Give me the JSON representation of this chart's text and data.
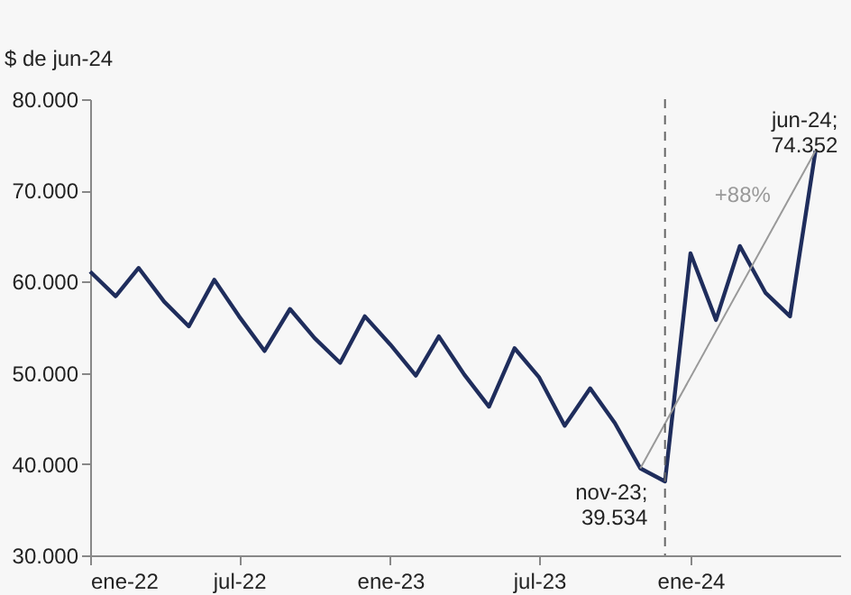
{
  "chart_data": {
    "type": "line",
    "ylabel": "$ de jun-24",
    "x": [
      "2022-01",
      "2022-02",
      "2022-03",
      "2022-04",
      "2022-05",
      "2022-06",
      "2022-07",
      "2022-08",
      "2022-09",
      "2022-10",
      "2022-11",
      "2022-12",
      "2023-01",
      "2023-02",
      "2023-03",
      "2023-04",
      "2023-05",
      "2023-06",
      "2023-07",
      "2023-08",
      "2023-09",
      "2023-10",
      "2023-11",
      "2023-12",
      "2024-01",
      "2024-02",
      "2024-03",
      "2024-04",
      "2024-05",
      "2024-06"
    ],
    "series": [
      {
        "color": "#1f2d5c",
        "values": [
          61100,
          58400,
          61500,
          57800,
          55100,
          60200,
          56200,
          52400,
          57000,
          53800,
          51100,
          56200,
          53100,
          49700,
          54000,
          49800,
          46300,
          52700,
          49500,
          44200,
          48300,
          44500,
          39534,
          38100,
          63100,
          55800,
          63900,
          58800,
          56200,
          74352
        ]
      },
      {
        "type": "line",
        "color": "#999999",
        "x": [
          "2023-11",
          "2024-06"
        ],
        "values": [
          39534,
          74352
        ]
      }
    ],
    "xlim": [
      "2022-01",
      "2024-07"
    ],
    "xticks": [
      {
        "value": "2022-01",
        "label": "ene-22"
      },
      {
        "value": "2022-07",
        "label": "jul-22"
      },
      {
        "value": "2023-01",
        "label": "ene-23"
      },
      {
        "value": "2023-07",
        "label": "jul-23"
      },
      {
        "value": "2024-01",
        "label": "ene-24"
      }
    ],
    "ylim": [
      30000,
      80000
    ],
    "yticks": [
      {
        "value": 30000,
        "label": "30.000"
      },
      {
        "value": 40000,
        "label": "40.000"
      },
      {
        "value": 50000,
        "label": "50.000"
      },
      {
        "value": 60000,
        "label": "60.000"
      },
      {
        "value": 70000,
        "label": "70.000"
      },
      {
        "value": 80000,
        "label": "80.000"
      }
    ],
    "ref_lines": [
      {
        "axis": "x",
        "value": "2023-12",
        "color": "#666666",
        "line_style": "dashed"
      }
    ],
    "annotations": [
      {
        "text": "nov-23; 39.534",
        "x": "2023-11",
        "y": 39534
      },
      {
        "text": "jun-24; 74.352",
        "x": "2024-06",
        "y": 74352
      },
      "+88%"
    ],
    "marker": "none",
    "line_style": "solid"
  }
}
